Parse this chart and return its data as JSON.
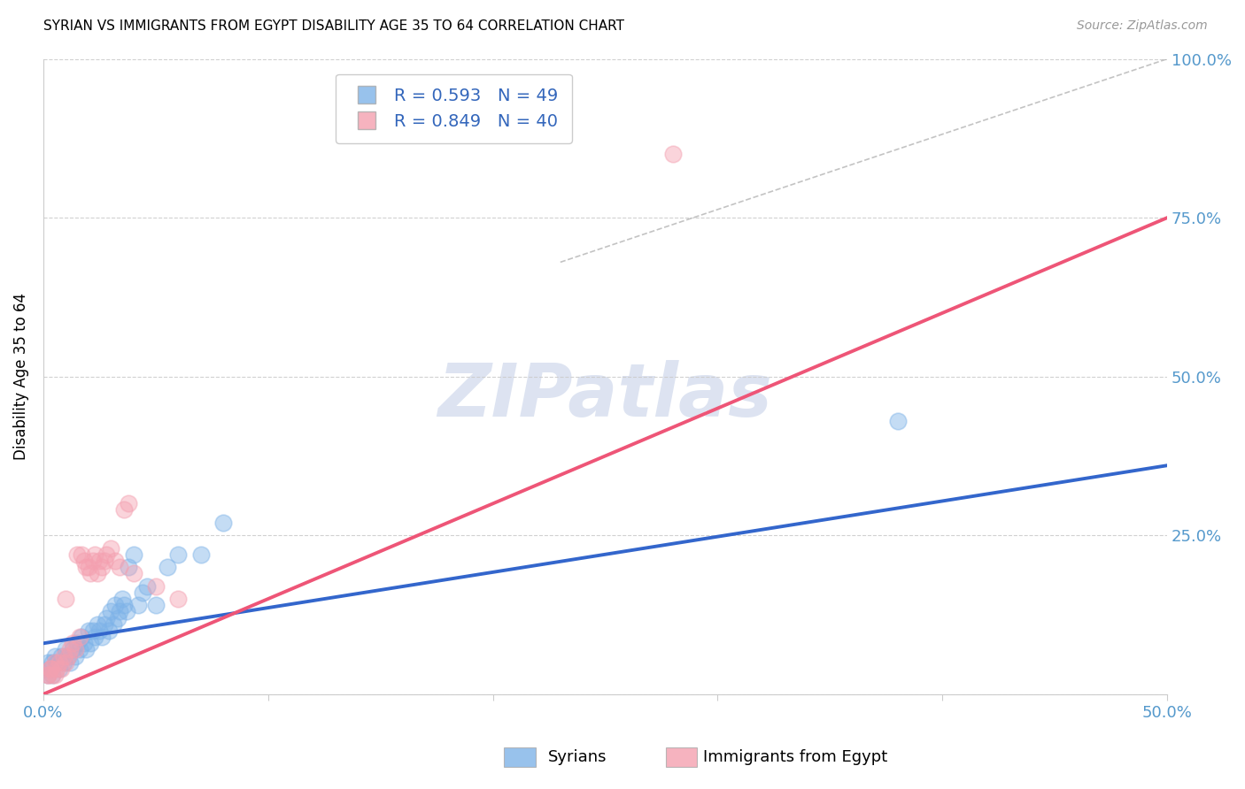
{
  "title": "SYRIAN VS IMMIGRANTS FROM EGYPT DISABILITY AGE 35 TO 64 CORRELATION CHART",
  "source": "Source: ZipAtlas.com",
  "xlabel_syrians": "Syrians",
  "xlabel_egypt": "Immigrants from Egypt",
  "ylabel": "Disability Age 35 to 64",
  "xlim": [
    0.0,
    0.5
  ],
  "ylim": [
    0.0,
    1.0
  ],
  "blue_color": "#7EB3E8",
  "pink_color": "#F4A0B0",
  "blue_line_color": "#3366CC",
  "pink_line_color": "#EE5577",
  "watermark": "ZIPatlas",
  "watermark_color": "#AABBDD",
  "legend_blue_r": "R = 0.593",
  "legend_blue_n": "N = 49",
  "legend_pink_r": "R = 0.849",
  "legend_pink_n": "N = 40",
  "syrians_x": [
    0.002,
    0.003,
    0.004,
    0.005,
    0.006,
    0.007,
    0.008,
    0.009,
    0.01,
    0.011,
    0.012,
    0.013,
    0.014,
    0.015,
    0.016,
    0.017,
    0.018,
    0.019,
    0.02,
    0.021,
    0.022,
    0.023,
    0.024,
    0.025,
    0.026,
    0.027,
    0.028,
    0.029,
    0.03,
    0.031,
    0.032,
    0.033,
    0.034,
    0.035,
    0.036,
    0.037,
    0.038,
    0.04,
    0.042,
    0.044,
    0.046,
    0.05,
    0.055,
    0.06,
    0.07,
    0.08,
    0.002,
    0.004,
    0.38
  ],
  "syrians_y": [
    0.05,
    0.04,
    0.05,
    0.06,
    0.05,
    0.04,
    0.06,
    0.05,
    0.07,
    0.06,
    0.05,
    0.07,
    0.06,
    0.08,
    0.07,
    0.09,
    0.08,
    0.07,
    0.1,
    0.08,
    0.1,
    0.09,
    0.11,
    0.1,
    0.09,
    0.11,
    0.12,
    0.1,
    0.13,
    0.11,
    0.14,
    0.12,
    0.13,
    0.15,
    0.14,
    0.13,
    0.2,
    0.22,
    0.14,
    0.16,
    0.17,
    0.14,
    0.2,
    0.22,
    0.22,
    0.27,
    0.03,
    0.03,
    0.43
  ],
  "egypt_x": [
    0.002,
    0.003,
    0.004,
    0.005,
    0.006,
    0.007,
    0.008,
    0.009,
    0.01,
    0.011,
    0.012,
    0.013,
    0.014,
    0.015,
    0.016,
    0.017,
    0.018,
    0.019,
    0.02,
    0.021,
    0.022,
    0.023,
    0.024,
    0.025,
    0.026,
    0.027,
    0.028,
    0.03,
    0.032,
    0.034,
    0.036,
    0.038,
    0.04,
    0.05,
    0.06,
    0.002,
    0.003,
    0.005,
    0.01,
    0.28
  ],
  "egypt_y": [
    0.03,
    0.04,
    0.03,
    0.05,
    0.04,
    0.05,
    0.04,
    0.06,
    0.05,
    0.06,
    0.07,
    0.08,
    0.07,
    0.22,
    0.09,
    0.22,
    0.21,
    0.2,
    0.2,
    0.19,
    0.21,
    0.22,
    0.19,
    0.21,
    0.2,
    0.21,
    0.22,
    0.23,
    0.21,
    0.2,
    0.29,
    0.3,
    0.19,
    0.17,
    0.15,
    0.03,
    0.04,
    0.03,
    0.15,
    0.85
  ],
  "blue_trend_x0": 0.0,
  "blue_trend_y0": 0.08,
  "blue_trend_x1": 0.5,
  "blue_trend_y1": 0.36,
  "pink_trend_x0": 0.0,
  "pink_trend_y0": 0.0,
  "pink_trend_x1": 0.5,
  "pink_trend_y1": 0.75,
  "ref_line_x0": 0.23,
  "ref_line_y0": 0.68,
  "ref_line_x1": 0.5,
  "ref_line_y1": 1.0
}
